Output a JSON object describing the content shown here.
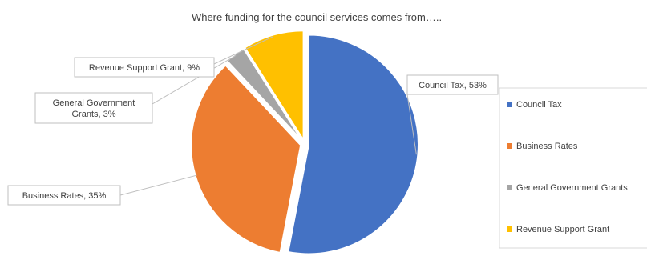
{
  "chart_data": {
    "type": "pie",
    "title": "Where funding for the council services comes from…..",
    "exploded": true,
    "categories": [
      "Council Tax",
      "Business Rates",
      "General Government Grants",
      "Revenue Support Grant"
    ],
    "values": [
      53,
      35,
      3,
      9
    ],
    "data_labels": [
      "Council Tax, 53%",
      "Business Rates, 35%",
      "General Government Grants, 3%",
      "Revenue Support Grant, 9%"
    ],
    "colors": [
      "#4472C4",
      "#ED7D31",
      "#A5A5A5",
      "#FFC000"
    ],
    "legend": {
      "placement": "right",
      "entries": [
        "Council Tax",
        "Business Rates",
        "General Government Grants",
        "Revenue Support Grant"
      ]
    }
  }
}
